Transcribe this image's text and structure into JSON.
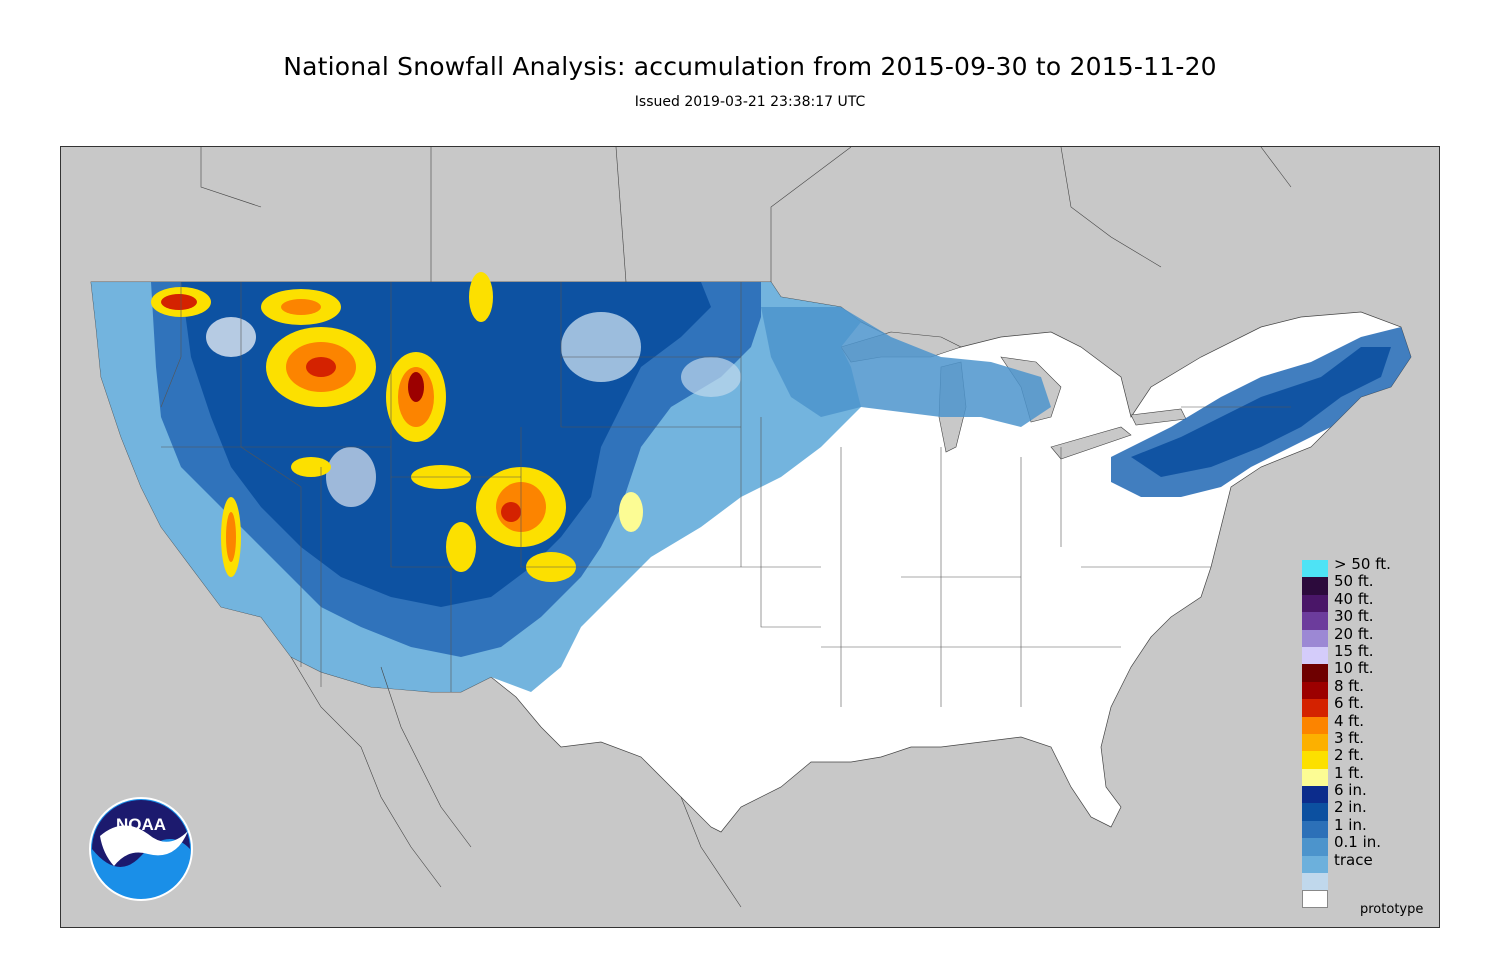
{
  "header": {
    "title": "National Snowfall Analysis: accumulation from 2015-09-30 to 2015-11-20",
    "subtitle": "Issued 2019-03-21 23:38:17 UTC"
  },
  "logo": {
    "text": "NOAA",
    "icon": "noaa-logo-icon"
  },
  "footer": {
    "note": "prototype"
  },
  "legend": {
    "items": [
      {
        "label": "> 50 ft.",
        "color": "#4ee3f5"
      },
      {
        "label": "50 ft.",
        "color": "#2c0a3c"
      },
      {
        "label": "40 ft.",
        "color": "#4a1668"
      },
      {
        "label": "30 ft.",
        "color": "#6c3c9c"
      },
      {
        "label": "20 ft.",
        "color": "#9c88d4"
      },
      {
        "label": "15 ft.",
        "color": "#d4ccfa"
      },
      {
        "label": "10 ft.",
        "color": "#6e0000"
      },
      {
        "label": "8 ft.",
        "color": "#9c0000"
      },
      {
        "label": "6 ft.",
        "color": "#d42200"
      },
      {
        "label": "4 ft.",
        "color": "#fc8400"
      },
      {
        "label": "3 ft.",
        "color": "#fcb000"
      },
      {
        "label": "2 ft.",
        "color": "#fce000"
      },
      {
        "label": "1 ft.",
        "color": "#fcfc94"
      },
      {
        "label": "6 in.",
        "color": "#0c2c8c"
      },
      {
        "label": "2 in.",
        "color": "#0c50a0"
      },
      {
        "label": "1 in.",
        "color": "#2c70b8"
      },
      {
        "label": "0.1 in.",
        "color": "#4c94cc"
      },
      {
        "label": "trace",
        "color": "#6cb0dc"
      },
      {
        "label": "",
        "color": "#c0d8ec"
      },
      {
        "label": "",
        "color": "#ffffff"
      }
    ]
  }
}
